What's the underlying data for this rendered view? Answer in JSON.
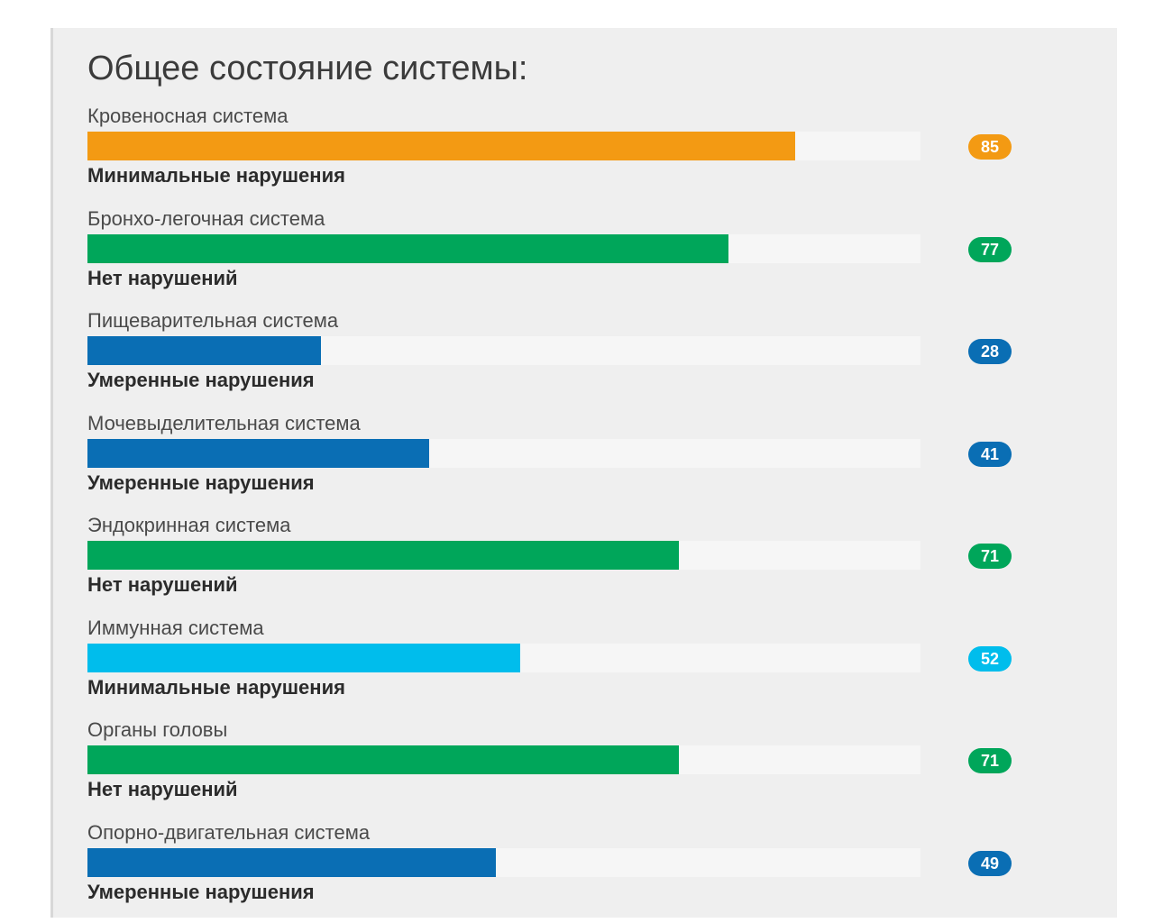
{
  "title": "Общее состояние системы:",
  "chart_data": {
    "type": "bar",
    "orientation": "horizontal",
    "title": "Общее состояние системы:",
    "xlim": [
      0,
      100
    ],
    "categories": [
      "Кровеносная система",
      "Бронхо-легочная система",
      "Пищеварительная система",
      "Мочевыделительная система",
      "Эндокринная система",
      "Иммунная система",
      "Органы головы",
      "Опорно-двигательная система"
    ],
    "values": [
      85,
      77,
      28,
      41,
      71,
      52,
      71,
      49
    ],
    "statuses": [
      "Минимальные нарушения",
      "Нет нарушений",
      "Умеренные нарушения",
      "Умеренные нарушения",
      "Нет нарушений",
      "Минимальные нарушения",
      "Нет нарушений",
      "Умеренные нарушения"
    ],
    "colors": [
      "#f39a13",
      "#00a65a",
      "#0a6eb4",
      "#0a6eb4",
      "#00a65a",
      "#00bdec",
      "#00a65a",
      "#0a6eb4"
    ],
    "track_color": "#f6f6f6"
  }
}
